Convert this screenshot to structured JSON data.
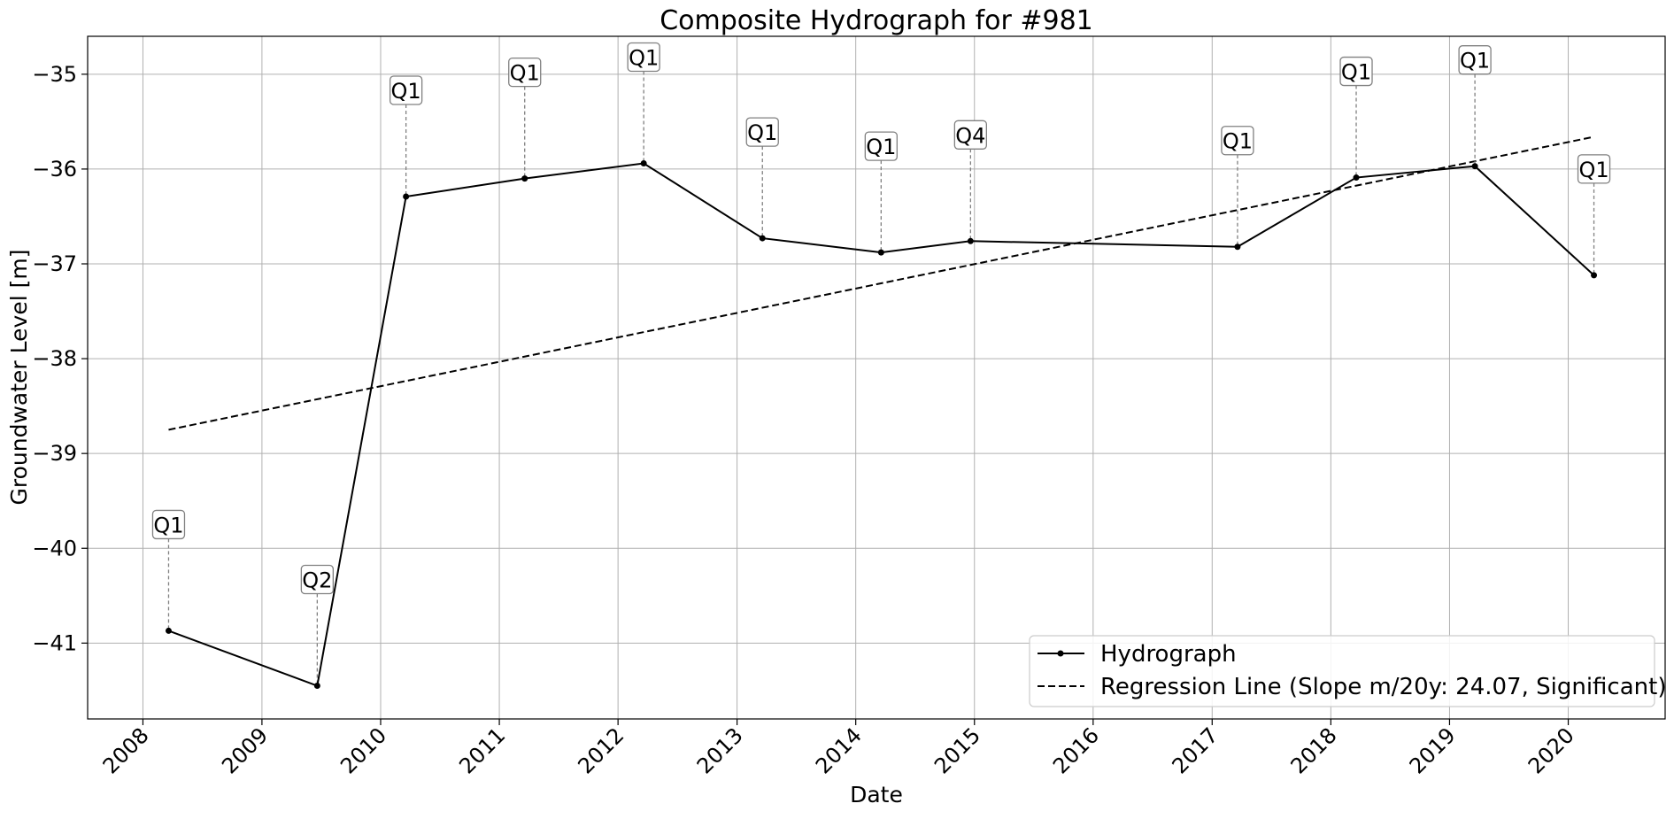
{
  "chart_data": {
    "type": "line",
    "title": "Composite Hydrograph for  #981",
    "xlabel": "Date",
    "ylabel": "Groundwater Level [m]",
    "x_ticks": [
      "2008",
      "2009",
      "2010",
      "2011",
      "2012",
      "2013",
      "2014",
      "2015",
      "2016",
      "2017",
      "2018",
      "2019",
      "2020"
    ],
    "y_ticks": [
      -35,
      -36,
      -37,
      -38,
      -39,
      -40,
      -41
    ],
    "y_tick_labels": [
      "−35",
      "−36",
      "−37",
      "−38",
      "−39",
      "−40",
      "−41"
    ],
    "xlim": [
      "2007-07-15",
      "2020-10-25"
    ],
    "ylim": [
      -41.8,
      -34.6
    ],
    "grid": true,
    "legend_position": "lower-right",
    "series": [
      {
        "name": "Hydrograph",
        "style": "solid-with-dots",
        "color": "#000000",
        "points": [
          {
            "x": "2008-03-20",
            "y": -40.87,
            "label": "Q1"
          },
          {
            "x": "2009-06-20",
            "y": -41.45,
            "label": "Q2"
          },
          {
            "x": "2010-03-20",
            "y": -36.29,
            "label": "Q1"
          },
          {
            "x": "2011-03-20",
            "y": -36.1,
            "label": "Q1"
          },
          {
            "x": "2012-03-20",
            "y": -35.94,
            "label": "Q1"
          },
          {
            "x": "2013-03-20",
            "y": -36.73,
            "label": "Q1"
          },
          {
            "x": "2014-03-20",
            "y": -36.88,
            "label": "Q1"
          },
          {
            "x": "2014-12-20",
            "y": -36.76,
            "label": "Q4"
          },
          {
            "x": "2017-03-20",
            "y": -36.82,
            "label": "Q1"
          },
          {
            "x": "2018-03-20",
            "y": -36.09,
            "label": "Q1"
          },
          {
            "x": "2019-03-20",
            "y": -35.97,
            "label": "Q1"
          },
          {
            "x": "2020-03-20",
            "y": -37.12,
            "label": "Q1"
          }
        ]
      },
      {
        "name": "Regression Line (Slope m/20y: 24.07, Significant)",
        "style": "dashed",
        "color": "#000000",
        "points": [
          {
            "x": "2008-03-20",
            "y": -38.75
          },
          {
            "x": "2020-03-20",
            "y": -35.66
          }
        ]
      }
    ]
  }
}
